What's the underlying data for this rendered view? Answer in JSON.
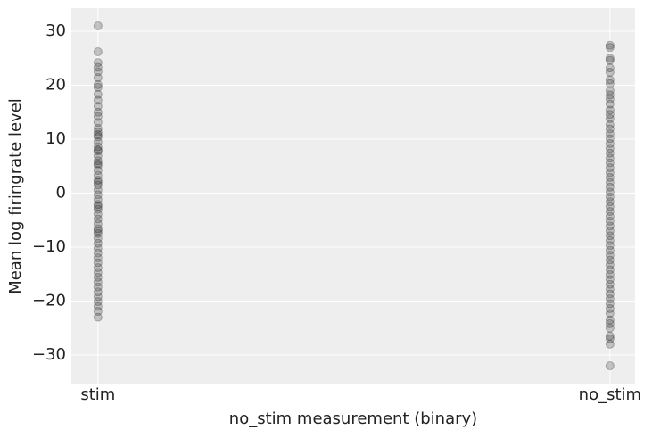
{
  "chart_data": {
    "type": "scatter",
    "xlabel": "no_stim measurement (binary)",
    "ylabel": "Mean log firingrate level",
    "xlim": [
      -0.052,
      1.049
    ],
    "ylim": [
      -35.3,
      34.3
    ],
    "xticks": [
      {
        "value": 0,
        "label": "stim"
      },
      {
        "value": 1,
        "label": "no_stim"
      }
    ],
    "yticks": [
      {
        "value": -30,
        "label": "−30"
      },
      {
        "value": -20,
        "label": "−20"
      },
      {
        "value": -10,
        "label": "−10"
      },
      0,
      10,
      20,
      30
    ],
    "grid": true,
    "series": [
      {
        "color": "#000000",
        "x": [
          0,
          0,
          0,
          0,
          0,
          0,
          0,
          0,
          0,
          0,
          0,
          0,
          0,
          0,
          0,
          0,
          0,
          0,
          0,
          0,
          0,
          0,
          0,
          0,
          0,
          0,
          0,
          0,
          0,
          0,
          0,
          0,
          0,
          0,
          0,
          0,
          0,
          0,
          0,
          0,
          0,
          0,
          0,
          0,
          0,
          0,
          0,
          0,
          0,
          0,
          0,
          0,
          0,
          0,
          0,
          0,
          0,
          0,
          0,
          0
        ],
        "y": [
          31,
          26.2,
          24.2,
          23.3,
          22.5,
          21.4,
          20.1,
          19.6,
          18.3,
          17.2,
          16.1,
          15.0,
          14.2,
          13.1,
          12.0,
          11.3,
          10.4,
          9.5,
          8.6,
          7.8,
          6.9,
          6.0,
          5.1,
          4.2,
          3.3,
          2.4,
          1.5,
          0.6,
          -0.3,
          -1.2,
          -2.1,
          -3.0,
          -3.9,
          -4.8,
          -5.7,
          -6.6,
          -7.5,
          -8.4,
          -9.3,
          -10.2,
          -11.1,
          -12.0,
          -12.9,
          -13.8,
          -14.7,
          -15.6,
          -16.5,
          -17.4,
          -18.3,
          -19.2,
          -20.1,
          -21.0,
          -21.9,
          -23.0,
          10.8,
          5.5,
          2.0,
          -2.5,
          -7.0,
          8.0
        ]
      },
      {
        "color": "#000000",
        "x": [
          1,
          1,
          1,
          1,
          1,
          1,
          1,
          1,
          1,
          1,
          1,
          1,
          1,
          1,
          1,
          1,
          1,
          1,
          1,
          1,
          1,
          1,
          1,
          1,
          1,
          1,
          1,
          1,
          1,
          1,
          1,
          1,
          1,
          1,
          1,
          1,
          1,
          1,
          1,
          1,
          1,
          1,
          1,
          1,
          1,
          1,
          1,
          1,
          1,
          1,
          1,
          1,
          1,
          1,
          1,
          1,
          1,
          1,
          1,
          1,
          1,
          1
        ],
        "y": [
          27.4,
          27.0,
          25.0,
          24.6,
          23.2,
          22.4,
          21.0,
          20.3,
          19.0,
          18.2,
          17.4,
          16.5,
          15.4,
          14.6,
          13.8,
          12.7,
          11.9,
          11.0,
          10.1,
          9.2,
          8.3,
          7.4,
          6.5,
          5.6,
          4.7,
          3.8,
          2.9,
          2.0,
          1.1,
          0.2,
          -0.7,
          -1.6,
          -2.5,
          -3.4,
          -4.3,
          -5.2,
          -6.1,
          -7.0,
          -7.9,
          -8.8,
          -9.7,
          -10.6,
          -11.5,
          -12.4,
          -13.3,
          -14.2,
          -15.1,
          -16.0,
          -16.9,
          -17.8,
          -18.7,
          -19.6,
          -20.5,
          -21.4,
          -22.3,
          -23.5,
          -24.2,
          -25.0,
          -26.5,
          -27.0,
          -28.0,
          -32.0
        ]
      }
    ]
  }
}
